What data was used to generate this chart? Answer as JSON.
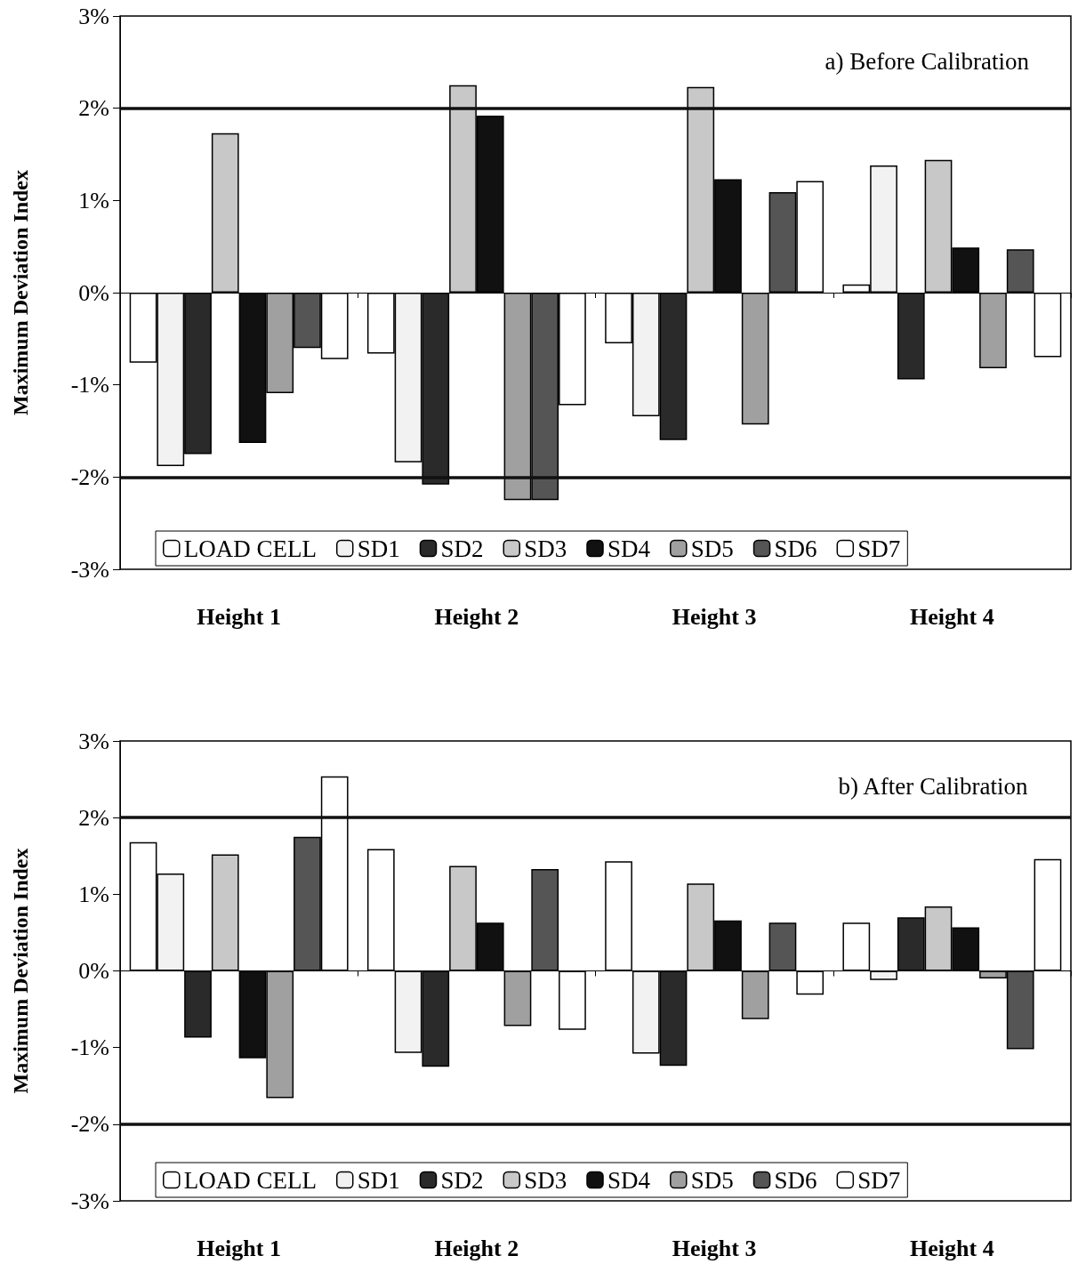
{
  "chart_data": [
    {
      "type": "bar",
      "title": "a) Before Calibration",
      "ylabel": "Maximum Deviation Index",
      "categories": [
        "Height 1",
        "Height 2",
        "Height 3",
        "Height 4"
      ],
      "ylim": [
        -3,
        3
      ],
      "yticks": [
        {
          "value": -3,
          "label": "-3%"
        },
        {
          "value": -2,
          "label": "-2%"
        },
        {
          "value": -1,
          "label": "-1%"
        },
        {
          "value": 0,
          "label": "0%"
        },
        {
          "value": 1,
          "label": "1%"
        },
        {
          "value": 2,
          "label": "2%"
        },
        {
          "value": 3,
          "label": "3%"
        }
      ],
      "grid": false,
      "legend": "bottom",
      "ref_lines": [
        {
          "axis": "y",
          "value": 2,
          "color": "#111111"
        },
        {
          "axis": "y",
          "value": -2,
          "color": "#111111"
        }
      ],
      "series": [
        {
          "name": "LOAD CELL",
          "color": "#ffffff",
          "values": [
            -0.76,
            -0.66,
            -0.55,
            0.09
          ]
        },
        {
          "name": "SD1",
          "color": "#f2f2f2",
          "values": [
            -1.88,
            -1.84,
            -1.34,
            1.38
          ]
        },
        {
          "name": "SD2",
          "color": "#2a2a2a",
          "values": [
            -1.75,
            -2.08,
            -1.6,
            -0.94
          ]
        },
        {
          "name": "SD3",
          "color": "#c8c8c8",
          "values": [
            1.73,
            2.25,
            2.23,
            1.44
          ]
        },
        {
          "name": "SD4",
          "color": "#111111",
          "values": [
            -1.63,
            1.92,
            1.23,
            0.49
          ]
        },
        {
          "name": "SD5",
          "color": "#a0a0a0",
          "values": [
            -1.09,
            -2.25,
            -1.43,
            -0.82
          ]
        },
        {
          "name": "SD6",
          "color": "#555555",
          "values": [
            -0.6,
            -2.25,
            1.09,
            0.47
          ]
        },
        {
          "name": "SD7",
          "color": "#ffffff",
          "values": [
            -0.72,
            -1.22,
            1.21,
            -0.7
          ]
        }
      ]
    },
    {
      "type": "bar",
      "title": "b) After Calibration",
      "ylabel": "Maximum Deviation Index",
      "categories": [
        "Height 1",
        "Height 2",
        "Height 3",
        "Height 4"
      ],
      "ylim": [
        -3,
        3
      ],
      "yticks": [
        {
          "value": -3,
          "label": "-3%"
        },
        {
          "value": -2,
          "label": "-2%"
        },
        {
          "value": -1,
          "label": "-1%"
        },
        {
          "value": 0,
          "label": "0%"
        },
        {
          "value": 1,
          "label": "1%"
        },
        {
          "value": 2,
          "label": "2%"
        },
        {
          "value": 3,
          "label": "3%"
        }
      ],
      "grid": false,
      "legend": "bottom",
      "ref_lines": [
        {
          "axis": "y",
          "value": 2,
          "color": "#111111"
        },
        {
          "axis": "y",
          "value": -2,
          "color": "#111111"
        }
      ],
      "series": [
        {
          "name": "LOAD CELL",
          "color": "#ffffff",
          "values": [
            1.68,
            1.59,
            1.43,
            0.63
          ]
        },
        {
          "name": "SD1",
          "color": "#f2f2f2",
          "values": [
            1.27,
            -1.07,
            -1.08,
            -0.12
          ]
        },
        {
          "name": "SD2",
          "color": "#2a2a2a",
          "values": [
            -0.87,
            -1.25,
            -1.24,
            0.7
          ]
        },
        {
          "name": "SD3",
          "color": "#c8c8c8",
          "values": [
            1.52,
            1.37,
            1.14,
            0.84
          ]
        },
        {
          "name": "SD4",
          "color": "#111111",
          "values": [
            -1.14,
            0.63,
            0.66,
            0.57
          ]
        },
        {
          "name": "SD5",
          "color": "#a0a0a0",
          "values": [
            -1.66,
            -0.72,
            -0.63,
            -0.1
          ]
        },
        {
          "name": "SD6",
          "color": "#555555",
          "values": [
            1.75,
            1.33,
            0.63,
            -1.02
          ]
        },
        {
          "name": "SD7",
          "color": "#ffffff",
          "values": [
            2.54,
            -0.77,
            -0.31,
            1.46
          ]
        }
      ]
    }
  ]
}
